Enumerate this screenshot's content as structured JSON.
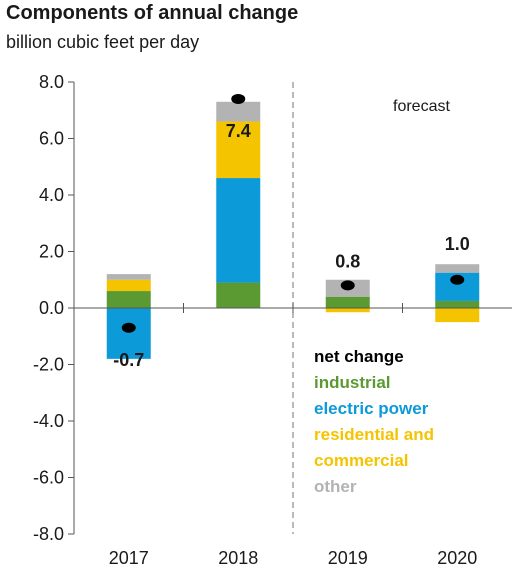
{
  "chart_data": {
    "type": "bar",
    "stacked": true,
    "title": "Components of annual change",
    "subtitle": "billion cubic feet per day",
    "categories": [
      "2017",
      "2018",
      "2019",
      "2020"
    ],
    "ylim": [
      -8.0,
      8.0
    ],
    "yticks": [
      "8.0",
      "6.0",
      "4.0",
      "2.0",
      "0.0",
      "-2.0",
      "-4.0",
      "-6.0",
      "-8.0"
    ],
    "series": [
      {
        "name": "industrial",
        "color": "#5b9a32",
        "values": [
          0.6,
          0.9,
          0.4,
          0.25
        ]
      },
      {
        "name": "electric power",
        "color": "#0d9ad8",
        "values": [
          -1.8,
          3.7,
          0.0,
          1.0
        ]
      },
      {
        "name": "residential and commercial",
        "color": "#f5c400",
        "values": [
          0.4,
          2.0,
          -0.15,
          -0.5
        ]
      },
      {
        "name": "other",
        "color": "#b3b3b3",
        "values": [
          0.2,
          0.7,
          0.6,
          0.3
        ]
      }
    ],
    "net_change": {
      "name": "net change",
      "values": [
        -0.7,
        7.4,
        0.8,
        1.0
      ],
      "labels": [
        "-0.7",
        "7.4",
        "0.8",
        "1.0"
      ]
    },
    "annotation": "forecast",
    "forecast_start_after": "2018",
    "legend": {
      "position": "bottom-right",
      "items": [
        {
          "label": "net change",
          "color": "#000000"
        },
        {
          "label": "industrial",
          "color": "#5b9a32"
        },
        {
          "label": "electric power",
          "color": "#0d9ad8"
        },
        {
          "label": "residential and",
          "color": "#f5c400"
        },
        {
          "label": "commercial",
          "color": "#f5c400"
        },
        {
          "label": "other",
          "color": "#b3b3b3"
        }
      ]
    }
  }
}
